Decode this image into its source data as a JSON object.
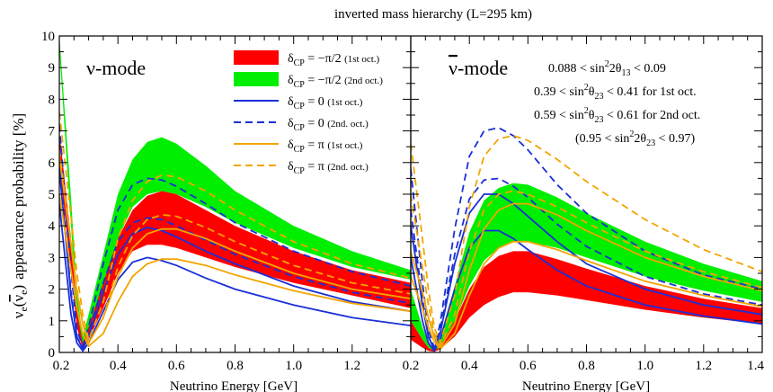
{
  "figure": {
    "title": "inverted mass hierarchy (L=295 km)",
    "ylabel_main": "ν",
    "ylabel_sub_e": "e",
    "ylabel_paren_open": "(",
    "ylabel_nubar": "ν",
    "ylabel_sub_e2": "e",
    "ylabel_paren_close": ")",
    "ylabel_rest": "appearance probability  [%]",
    "xlabel": "Neutrino Energy [GeV]"
  },
  "colors": {
    "red": "#ff0000",
    "green": "#00ee00",
    "blue": "#1a2fd6",
    "orange": "#f2a500",
    "white": "#ffffff",
    "black": "#000000"
  },
  "chart_data": [
    {
      "type": "line",
      "panel_label": "ν-mode",
      "xlim": [
        0.2,
        1.4
      ],
      "ylim": [
        0,
        10
      ],
      "xticks": [
        "0.2",
        "0.4",
        "0.6",
        "0.8",
        "1.0",
        "1.2"
      ],
      "yticks": [
        "0",
        "1",
        "2",
        "3",
        "4",
        "5",
        "6",
        "7",
        "8",
        "9",
        "10"
      ],
      "bands": [
        {
          "name": "δCP = −π/2 (2nd oct.)",
          "color": "#00ee00",
          "x": [
            0.2,
            0.24,
            0.26,
            0.28,
            0.3,
            0.35,
            0.4,
            0.45,
            0.5,
            0.55,
            0.6,
            0.7,
            0.8,
            1.0,
            1.2,
            1.4
          ],
          "lower": [
            9.6,
            4.0,
            1.3,
            0.2,
            0.6,
            2.0,
            3.6,
            4.6,
            5.0,
            5.1,
            5.0,
            4.6,
            4.1,
            3.3,
            2.7,
            2.3
          ],
          "upper": [
            10.0,
            4.9,
            1.9,
            0.5,
            1.2,
            3.1,
            5.0,
            6.1,
            6.65,
            6.8,
            6.6,
            5.9,
            5.1,
            4.0,
            3.2,
            2.6
          ]
        },
        {
          "name": "δCP = −π/2 (1st oct.)",
          "color": "#ff0000",
          "x": [
            0.2,
            0.24,
            0.26,
            0.28,
            0.3,
            0.35,
            0.4,
            0.45,
            0.5,
            0.55,
            0.6,
            0.7,
            0.8,
            1.0,
            1.2,
            1.4
          ],
          "lower": [
            5.9,
            2.6,
            0.8,
            0.1,
            0.4,
            1.4,
            2.5,
            3.2,
            3.4,
            3.4,
            3.3,
            3.0,
            2.7,
            2.2,
            1.8,
            1.4
          ],
          "upper": [
            7.0,
            3.6,
            1.3,
            0.3,
            0.8,
            2.2,
            3.6,
            4.5,
            4.95,
            5.1,
            5.0,
            4.5,
            4.0,
            3.2,
            2.6,
            2.2
          ]
        }
      ],
      "series": [
        {
          "name": "δCP = 0 (1st oct.)",
          "color": "#1a2fd6",
          "dash": false,
          "x": [
            0.2,
            0.24,
            0.26,
            0.28,
            0.3,
            0.35,
            0.4,
            0.45,
            0.5,
            0.55,
            0.6,
            0.7,
            0.8,
            1.0,
            1.2,
            1.4
          ],
          "y": [
            4.7,
            1.2,
            0.3,
            0.05,
            0.3,
            1.3,
            2.3,
            2.85,
            3.0,
            2.9,
            2.75,
            2.35,
            2.0,
            1.5,
            1.1,
            0.85
          ]
        },
        {
          "name": "δCP = 0 (1st oct.) upper",
          "color": "#1a2fd6",
          "dash": false,
          "x": [
            0.2,
            0.24,
            0.26,
            0.28,
            0.3,
            0.35,
            0.4,
            0.45,
            0.5,
            0.55,
            0.6,
            0.7,
            0.8,
            1.0,
            1.2,
            1.4
          ],
          "y": [
            5.8,
            1.8,
            0.5,
            0.1,
            0.5,
            1.9,
            3.1,
            3.75,
            3.95,
            3.85,
            3.65,
            3.2,
            2.8,
            2.1,
            1.6,
            1.3
          ]
        },
        {
          "name": "δCP = 0 (2nd. oct.)",
          "color": "#1a2fd6",
          "dash": true,
          "x": [
            0.2,
            0.24,
            0.26,
            0.28,
            0.3,
            0.35,
            0.4,
            0.45,
            0.5,
            0.55,
            0.6,
            0.7,
            0.8,
            1.0,
            1.2,
            1.4
          ],
          "y": [
            6.0,
            1.9,
            0.5,
            0.1,
            0.6,
            2.2,
            3.5,
            4.1,
            4.25,
            4.2,
            4.0,
            3.55,
            3.1,
            2.4,
            1.9,
            1.55
          ]
        },
        {
          "name": "δCP = 0 (2nd. oct.) upper",
          "color": "#1a2fd6",
          "dash": true,
          "x": [
            0.2,
            0.24,
            0.26,
            0.28,
            0.3,
            0.35,
            0.4,
            0.45,
            0.5,
            0.55,
            0.6,
            0.7,
            0.8,
            1.0,
            1.2,
            1.4
          ],
          "y": [
            7.2,
            2.6,
            0.7,
            0.2,
            0.8,
            2.8,
            4.5,
            5.3,
            5.5,
            5.45,
            5.25,
            4.7,
            4.1,
            3.2,
            2.55,
            2.1
          ]
        },
        {
          "name": "δCP = π (1st oct.)",
          "color": "#f2a500",
          "dash": false,
          "x": [
            0.2,
            0.24,
            0.26,
            0.28,
            0.3,
            0.35,
            0.4,
            0.45,
            0.5,
            0.55,
            0.6,
            0.7,
            0.8,
            1.0,
            1.2,
            1.4
          ],
          "y": [
            5.0,
            2.6,
            1.4,
            0.6,
            0.2,
            0.6,
            1.6,
            2.4,
            2.8,
            2.95,
            2.95,
            2.75,
            2.45,
            1.95,
            1.55,
            1.3
          ]
        },
        {
          "name": "δCP = π (1st oct.) upper",
          "color": "#f2a500",
          "dash": false,
          "x": [
            0.2,
            0.24,
            0.26,
            0.28,
            0.3,
            0.35,
            0.4,
            0.45,
            0.5,
            0.55,
            0.6,
            0.7,
            0.8,
            1.0,
            1.2,
            1.4
          ],
          "y": [
            6.2,
            3.4,
            1.9,
            0.9,
            0.3,
            1.1,
            2.4,
            3.3,
            3.75,
            3.9,
            3.9,
            3.6,
            3.2,
            2.5,
            2.0,
            1.7
          ]
        },
        {
          "name": "δCP = π (2nd. oct.)",
          "color": "#f2a500",
          "dash": true,
          "x": [
            0.2,
            0.24,
            0.26,
            0.28,
            0.3,
            0.35,
            0.4,
            0.45,
            0.5,
            0.55,
            0.6,
            0.7,
            0.8,
            1.0,
            1.2,
            1.4
          ],
          "y": [
            6.4,
            3.5,
            2.0,
            0.9,
            0.3,
            1.1,
            2.7,
            3.7,
            4.2,
            4.35,
            4.3,
            3.95,
            3.5,
            2.75,
            2.2,
            1.85
          ]
        },
        {
          "name": "δCP = π (2nd. oct.) upper",
          "color": "#f2a500",
          "dash": true,
          "x": [
            0.2,
            0.24,
            0.26,
            0.28,
            0.3,
            0.35,
            0.4,
            0.45,
            0.5,
            0.55,
            0.6,
            0.7,
            0.8,
            1.0,
            1.2,
            1.4
          ],
          "y": [
            7.6,
            4.3,
            2.5,
            1.2,
            0.4,
            1.6,
            3.6,
            4.8,
            5.4,
            5.6,
            5.55,
            5.1,
            4.5,
            3.5,
            2.8,
            2.35
          ]
        }
      ]
    },
    {
      "type": "line",
      "panel_label": "ν̄-mode",
      "xlim": [
        0.2,
        1.4
      ],
      "ylim": [
        0,
        10
      ],
      "xticks": [
        "0.2",
        "0.4",
        "0.6",
        "0.8",
        "1.0",
        "1.2",
        "1.4"
      ],
      "yticks": [],
      "bands": [
        {
          "name": "δCP = −π/2 (2nd oct.)",
          "color": "#00ee00",
          "x": [
            0.2,
            0.24,
            0.26,
            0.28,
            0.3,
            0.35,
            0.4,
            0.45,
            0.5,
            0.55,
            0.6,
            0.7,
            0.8,
            1.0,
            1.2,
            1.4
          ],
          "lower": [
            1.0,
            0.4,
            0.15,
            0.05,
            0.2,
            1.0,
            2.1,
            2.9,
            3.3,
            3.5,
            3.5,
            3.3,
            3.0,
            2.4,
            1.95,
            1.6
          ],
          "upper": [
            2.0,
            0.8,
            0.3,
            0.1,
            0.5,
            2.1,
            3.8,
            4.8,
            5.2,
            5.35,
            5.3,
            4.9,
            4.4,
            3.5,
            2.8,
            2.25
          ]
        },
        {
          "name": "δCP = −π/2 (1st oct.)",
          "color": "#ff0000",
          "x": [
            0.2,
            0.24,
            0.26,
            0.28,
            0.3,
            0.35,
            0.4,
            0.45,
            0.5,
            0.55,
            0.6,
            0.7,
            0.8,
            1.0,
            1.2,
            1.4
          ],
          "lower": [
            0.4,
            0.15,
            0.05,
            0.02,
            0.1,
            0.5,
            1.1,
            1.5,
            1.75,
            1.9,
            1.9,
            1.8,
            1.65,
            1.35,
            1.1,
            0.9
          ],
          "upper": [
            1.0,
            0.4,
            0.15,
            0.05,
            0.2,
            1.0,
            2.0,
            2.7,
            3.05,
            3.2,
            3.2,
            2.95,
            2.65,
            2.1,
            1.7,
            1.4
          ]
        }
      ],
      "series": [
        {
          "name": "δCP = 0 (1st oct.)",
          "color": "#1a2fd6",
          "dash": false,
          "x": [
            0.2,
            0.24,
            0.26,
            0.28,
            0.3,
            0.35,
            0.4,
            0.45,
            0.5,
            0.55,
            0.6,
            0.7,
            0.8,
            1.0,
            1.2,
            1.4
          ],
          "y": [
            3.0,
            1.0,
            0.3,
            0.05,
            0.4,
            2.0,
            3.3,
            3.85,
            3.85,
            3.6,
            3.25,
            2.6,
            2.1,
            1.5,
            1.15,
            0.9
          ]
        },
        {
          "name": "δCP = 0 (1st oct.) upper",
          "color": "#1a2fd6",
          "dash": false,
          "x": [
            0.2,
            0.24,
            0.26,
            0.28,
            0.3,
            0.35,
            0.4,
            0.45,
            0.5,
            0.55,
            0.6,
            0.7,
            0.8,
            1.0,
            1.2,
            1.4
          ],
          "y": [
            4.0,
            1.5,
            0.5,
            0.1,
            0.6,
            2.8,
            4.4,
            5.0,
            5.0,
            4.7,
            4.3,
            3.5,
            2.8,
            2.0,
            1.5,
            1.2
          ]
        },
        {
          "name": "δCP = 0 (2nd. oct.)",
          "color": "#1a2fd6",
          "dash": true,
          "x": [
            0.2,
            0.24,
            0.26,
            0.28,
            0.3,
            0.35,
            0.4,
            0.45,
            0.5,
            0.55,
            0.6,
            0.7,
            0.8,
            1.0,
            1.2,
            1.4
          ],
          "y": [
            4.5,
            1.7,
            0.5,
            0.1,
            0.7,
            3.1,
            4.85,
            5.45,
            5.5,
            5.25,
            4.9,
            4.05,
            3.35,
            2.4,
            1.85,
            1.5
          ]
        },
        {
          "name": "δCP = 0 (2nd. oct.) upper",
          "color": "#1a2fd6",
          "dash": true,
          "x": [
            0.2,
            0.24,
            0.26,
            0.28,
            0.3,
            0.35,
            0.4,
            0.45,
            0.5,
            0.55,
            0.6,
            0.7,
            0.8,
            1.0,
            1.2,
            1.4
          ],
          "y": [
            5.8,
            2.2,
            0.7,
            0.15,
            0.9,
            3.9,
            6.2,
            7.0,
            7.1,
            6.85,
            6.4,
            5.3,
            4.4,
            3.2,
            2.45,
            2.0
          ]
        },
        {
          "name": "δCP = π (1st oct.)",
          "color": "#f2a500",
          "dash": false,
          "x": [
            0.2,
            0.24,
            0.26,
            0.28,
            0.3,
            0.35,
            0.4,
            0.45,
            0.5,
            0.55,
            0.6,
            0.7,
            0.8,
            1.0,
            1.2,
            1.4
          ],
          "y": [
            2.4,
            1.4,
            0.8,
            0.35,
            0.1,
            0.6,
            1.8,
            2.8,
            3.3,
            3.5,
            3.5,
            3.25,
            2.9,
            2.25,
            1.8,
            1.45
          ]
        },
        {
          "name": "δCP = π (1st oct.) upper",
          "color": "#f2a500",
          "dash": false,
          "x": [
            0.2,
            0.24,
            0.26,
            0.28,
            0.3,
            0.35,
            0.4,
            0.45,
            0.5,
            0.55,
            0.6,
            0.7,
            0.8,
            1.0,
            1.2,
            1.4
          ],
          "y": [
            3.2,
            1.9,
            1.1,
            0.5,
            0.15,
            0.9,
            2.6,
            3.9,
            4.5,
            4.7,
            4.7,
            4.35,
            3.85,
            3.0,
            2.4,
            1.95
          ]
        },
        {
          "name": "δCP = π (2nd. oct.)",
          "color": "#f2a500",
          "dash": true,
          "x": [
            0.2,
            0.24,
            0.26,
            0.28,
            0.3,
            0.35,
            0.4,
            0.45,
            0.5,
            0.55,
            0.6,
            0.7,
            0.8,
            1.0,
            1.2,
            1.4
          ],
          "y": [
            5.0,
            2.7,
            1.5,
            0.6,
            0.2,
            1.2,
            3.2,
            4.5,
            5.0,
            5.1,
            5.0,
            4.6,
            4.1,
            3.2,
            2.55,
            2.05
          ]
        },
        {
          "name": "δCP = π (2nd. oct.) upper",
          "color": "#f2a500",
          "dash": true,
          "x": [
            0.2,
            0.24,
            0.26,
            0.28,
            0.3,
            0.35,
            0.4,
            0.45,
            0.5,
            0.55,
            0.6,
            0.7,
            0.8,
            1.0,
            1.2,
            1.4
          ],
          "y": [
            6.6,
            3.6,
            2.0,
            0.8,
            0.3,
            1.8,
            4.6,
            6.2,
            6.75,
            6.85,
            6.7,
            6.1,
            5.4,
            4.2,
            3.25,
            2.55
          ]
        }
      ]
    }
  ],
  "legend": [
    {
      "sym": "δ",
      "sub": "CP",
      "text": " = −π/2 ",
      "note": "(1st oct.)",
      "kind": "band",
      "color": "#ff0000"
    },
    {
      "sym": "δ",
      "sub": "CP",
      "text": " = −π/2 ",
      "note": "(2nd oct.)",
      "kind": "band",
      "color": "#00ee00"
    },
    {
      "sym": "δ",
      "sub": "CP",
      "text": " = 0 ",
      "note": "(1st oct.)",
      "kind": "line",
      "color": "#1a2fd6",
      "dash": false
    },
    {
      "sym": "δ",
      "sub": "CP",
      "text": " = 0 ",
      "note": "(2nd. oct.)",
      "kind": "line",
      "color": "#1a2fd6",
      "dash": true
    },
    {
      "sym": "δ",
      "sub": "CP",
      "text": " = π ",
      "note": "(1st oct.)",
      "kind": "line",
      "color": "#f2a500",
      "dash": false
    },
    {
      "sym": "δ",
      "sub": "CP",
      "text": " = π ",
      "note": "(2nd. oct.)",
      "kind": "line",
      "color": "#f2a500",
      "dash": true
    }
  ],
  "annotations": [
    {
      "pre": "0.088  < sin",
      "sup": "2",
      "mid": "2θ",
      "sub": "13",
      "post": "  < 0.09"
    },
    {
      "pre": "0.39 < sin",
      "sup": "2",
      "mid": "θ",
      "sub": "23",
      "post": " < 0.41 for  1st oct."
    },
    {
      "pre": "0.59 < sin",
      "sup": "2",
      "mid": "θ",
      "sub": "23",
      "post": " < 0.61 for  2nd oct."
    },
    {
      "pre": "(0.95 < sin",
      "sup": "2",
      "mid": "2θ",
      "sub": "23",
      "post": " < 0.97)"
    }
  ]
}
